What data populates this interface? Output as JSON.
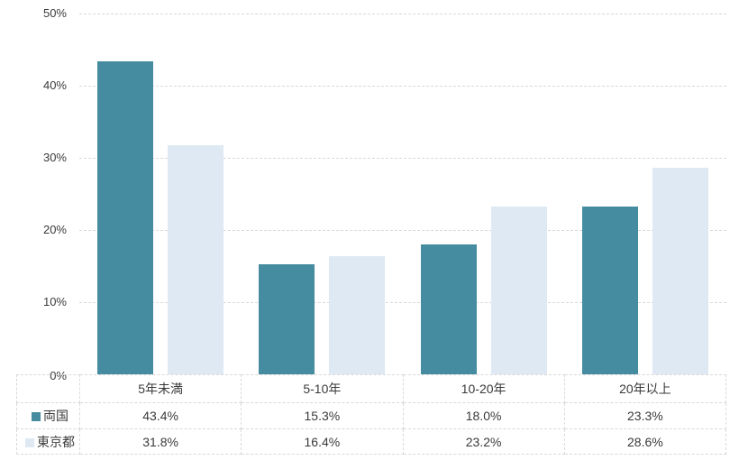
{
  "chart_data": {
    "type": "bar",
    "categories": [
      "5年未満",
      "5-10年",
      "10-20年",
      "20年以上"
    ],
    "series": [
      {
        "name": "両国",
        "color": "#468ca0",
        "values": [
          43.4,
          15.3,
          18.0,
          23.3
        ]
      },
      {
        "name": "東京都",
        "color": "#dee9f4",
        "values": [
          31.8,
          16.4,
          23.2,
          28.6
        ]
      }
    ],
    "title": "",
    "xlabel": "",
    "ylabel": "",
    "ylim": [
      0,
      50
    ],
    "yticks": [
      "0%",
      "10%",
      "20%",
      "30%",
      "40%",
      "50%"
    ],
    "grid": "horizontal-dashed",
    "legend_position": "data-table-left"
  },
  "table": {
    "categories": [
      "5年未満",
      "5-10年",
      "10-20年",
      "20年以上"
    ],
    "rows": [
      {
        "label": "両国",
        "values": [
          "43.4%",
          "15.3%",
          "18.0%",
          "23.3%"
        ]
      },
      {
        "label": "東京都",
        "values": [
          "31.8%",
          "16.4%",
          "23.2%",
          "28.6%"
        ]
      }
    ]
  },
  "colors": {
    "series_ryogoku": "#468ca0",
    "series_tokyo": "#dee9f4",
    "gridline": "#d9d9d9",
    "text": "#3a3a3a"
  }
}
